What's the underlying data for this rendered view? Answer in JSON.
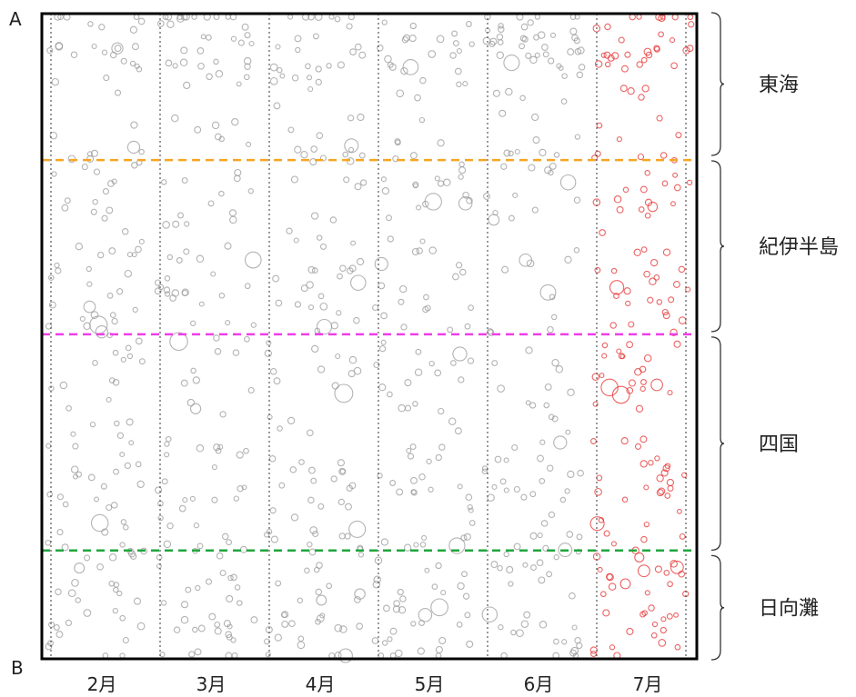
{
  "chart_data": {
    "type": "scatter",
    "corner_labels": {
      "top": "A",
      "bottom": "B"
    },
    "x_categories": [
      "2月",
      "3月",
      "4月",
      "5月",
      "6月",
      "7月"
    ],
    "regions": [
      {
        "name": "東海",
        "from_fraction": 0.0,
        "to_fraction": 0.227
      },
      {
        "name": "紀伊半島",
        "from_fraction": 0.227,
        "to_fraction": 0.497
      },
      {
        "name": "四国",
        "from_fraction": 0.497,
        "to_fraction": 0.832
      },
      {
        "name": "日向灘",
        "from_fraction": 0.832,
        "to_fraction": 1.0
      }
    ],
    "region_boundary_colors": [
      "#f5a623",
      "#ee3de6",
      "#1fa63c"
    ],
    "colors": {
      "past_months": "#9a9a9a",
      "latest_month": "#e53030",
      "frame": "#000000"
    },
    "highlighted_month": "7月",
    "grid": "vertical dotted lines between months"
  }
}
